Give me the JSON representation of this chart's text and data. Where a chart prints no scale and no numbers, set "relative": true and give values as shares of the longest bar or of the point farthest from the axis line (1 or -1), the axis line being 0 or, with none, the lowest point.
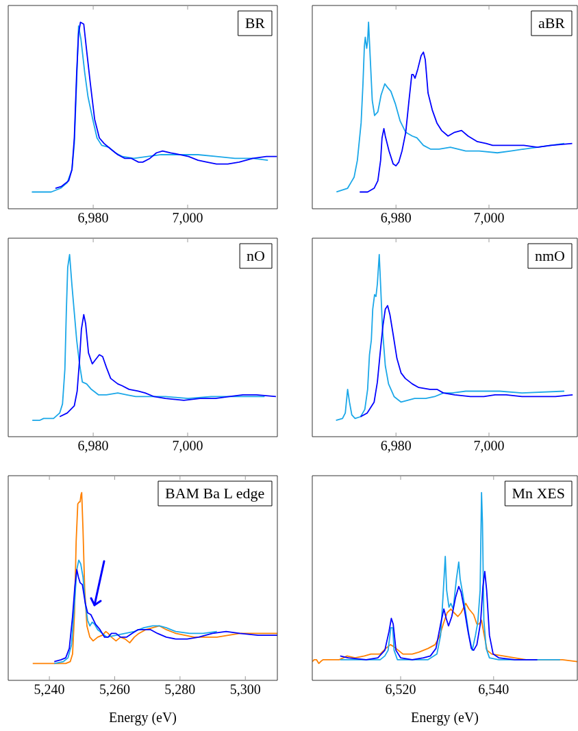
{
  "chart_data": [
    {
      "type": "line",
      "title": "BR",
      "relative": true,
      "xlim": [
        6962,
        7019
      ],
      "xticks": [
        {
          "value": 6980,
          "label": "6,980"
        },
        {
          "value": 7000,
          "label": "7,000"
        }
      ],
      "series": [
        {
          "color": "#0000ff",
          "x": [
            6972.0,
            6973.3,
            6974.8,
            6975.5,
            6976.0,
            6976.5,
            6976.9,
            6977.3,
            6978.0,
            6978.6,
            6979.4,
            6980.3,
            6981.3,
            6982.3,
            6983.7,
            6985.2,
            6986.7,
            6988.1,
            6989.6,
            6990.5,
            6992.0,
            6993.4,
            6994.7,
            6996.4,
            6998.3,
            7000.2,
            7002.2,
            7004.1,
            7006.1,
            7008.5,
            7010.9,
            7013.8,
            7016.7,
            7018.9
          ],
          "values": [
            0.11,
            0.12,
            0.15,
            0.21,
            0.38,
            0.73,
            0.94,
            1.0,
            0.99,
            0.85,
            0.67,
            0.48,
            0.38,
            0.35,
            0.32,
            0.29,
            0.27,
            0.27,
            0.25,
            0.25,
            0.27,
            0.3,
            0.31,
            0.3,
            0.29,
            0.28,
            0.26,
            0.25,
            0.24,
            0.24,
            0.25,
            0.27,
            0.28,
            0.28
          ]
        },
        {
          "color": "#1aa7e8",
          "x": [
            6967.0,
            6971.1,
            6973.1,
            6974.5,
            6975.5,
            6976.0,
            6976.5,
            6976.9,
            6977.4,
            6978.2,
            6978.9,
            6979.9,
            6980.8,
            6981.8,
            6983.3,
            6984.7,
            6986.2,
            6988.6,
            6991.5,
            6994.4,
            6998.3,
            7002.2,
            7006.1,
            7010.0,
            7013.8,
            7017.0
          ],
          "values": [
            0.09,
            0.09,
            0.11,
            0.14,
            0.21,
            0.35,
            0.69,
            0.98,
            0.91,
            0.73,
            0.6,
            0.48,
            0.38,
            0.34,
            0.33,
            0.3,
            0.28,
            0.27,
            0.28,
            0.29,
            0.29,
            0.29,
            0.28,
            0.27,
            0.27,
            0.26
          ]
        }
      ]
    },
    {
      "type": "line",
      "title": "aBR",
      "relative": true,
      "xlim": [
        6962,
        7019
      ],
      "xticks": [
        {
          "value": 6980,
          "label": "6,980"
        },
        {
          "value": 7000,
          "label": "7,000"
        }
      ],
      "series": [
        {
          "color": "#0000ff",
          "x": [
            6972.2,
            6973.9,
            6975.3,
            6976.1,
            6976.7,
            6977.0,
            6977.4,
            6977.7,
            6978.5,
            6979.4,
            6980.0,
            6980.6,
            6981.3,
            6982.1,
            6982.8,
            6983.4,
            6983.7,
            6984.1,
            6984.7,
            6985.4,
            6985.9,
            6986.3,
            6986.9,
            6987.8,
            6988.8,
            6989.8,
            6991.2,
            6992.6,
            6994.1,
            6995.5,
            6997.5,
            6999.4,
            7000.8,
            7004.7,
            7007.5,
            7010.4,
            7013.3,
            7017.9
          ],
          "values": [
            0.09,
            0.09,
            0.11,
            0.15,
            0.26,
            0.38,
            0.43,
            0.39,
            0.31,
            0.24,
            0.23,
            0.25,
            0.31,
            0.41,
            0.58,
            0.72,
            0.72,
            0.7,
            0.75,
            0.82,
            0.84,
            0.8,
            0.62,
            0.53,
            0.46,
            0.42,
            0.39,
            0.41,
            0.42,
            0.39,
            0.36,
            0.35,
            0.34,
            0.34,
            0.34,
            0.33,
            0.34,
            0.35
          ]
        },
        {
          "color": "#1aa7e8",
          "x": [
            6967.2,
            6969.6,
            6970.3,
            6971.0,
            6971.7,
            6972.5,
            6972.9,
            6973.2,
            6973.4,
            6973.7,
            6973.9,
            6974.1,
            6974.5,
            6974.9,
            6975.4,
            6976.1,
            6976.8,
            6977.6,
            6978.2,
            6978.9,
            6979.9,
            6980.9,
            6982.1,
            6983.5,
            6984.5,
            6985.9,
            6987.4,
            6989.3,
            6991.7,
            6995.0,
            6997.9,
            7001.8,
            7004.7,
            7007.5,
            7010.4,
            7013.3,
            7016.2
          ],
          "values": [
            0.09,
            0.11,
            0.14,
            0.17,
            0.26,
            0.46,
            0.67,
            0.87,
            0.92,
            0.86,
            0.9,
            1.0,
            0.79,
            0.58,
            0.5,
            0.52,
            0.61,
            0.67,
            0.65,
            0.63,
            0.56,
            0.47,
            0.41,
            0.39,
            0.38,
            0.34,
            0.32,
            0.32,
            0.33,
            0.31,
            0.31,
            0.3,
            0.31,
            0.32,
            0.33,
            0.34,
            0.35
          ]
        }
      ]
    },
    {
      "type": "line",
      "title": "nO",
      "relative": true,
      "xlim": [
        6962,
        7019
      ],
      "xticks": [
        {
          "value": 6980,
          "label": "6,980"
        },
        {
          "value": 7000,
          "label": "7,000"
        }
      ],
      "series": [
        {
          "color": "#0000ff",
          "x": [
            6972.9,
            6974.5,
            6976.0,
            6976.6,
            6977.1,
            6977.5,
            6978.0,
            6978.4,
            6979.0,
            6979.8,
            6980.4,
            6981.3,
            6982.0,
            6982.8,
            6983.7,
            6985.2,
            6986.1,
            6987.6,
            6989.5,
            6991.0,
            6992.9,
            6995.3,
            6999.2,
            7002.6,
            7005.9,
            7008.8,
            7011.7,
            7014.6,
            7018.7
          ],
          "values": [
            0.11,
            0.13,
            0.17,
            0.25,
            0.42,
            0.59,
            0.67,
            0.62,
            0.46,
            0.4,
            0.42,
            0.45,
            0.44,
            0.38,
            0.32,
            0.29,
            0.28,
            0.26,
            0.25,
            0.24,
            0.22,
            0.21,
            0.2,
            0.21,
            0.21,
            0.22,
            0.23,
            0.23,
            0.22
          ]
        },
        {
          "color": "#1aa7e8",
          "x": [
            6967.1,
            6968.7,
            6969.5,
            6970.2,
            6971.6,
            6972.9,
            6973.5,
            6974.0,
            6974.3,
            6974.6,
            6975.0,
            6975.5,
            6976.0,
            6976.5,
            6977.1,
            6977.7,
            6978.6,
            6979.6,
            6981.1,
            6982.8,
            6985.2,
            6987.1,
            6989.0,
            6991.4,
            6995.3,
            7000.1,
            7005.0,
            7009.8,
            7016.3
          ],
          "values": [
            0.09,
            0.09,
            0.1,
            0.1,
            0.1,
            0.13,
            0.18,
            0.37,
            0.68,
            0.93,
            1.0,
            0.83,
            0.68,
            0.53,
            0.4,
            0.3,
            0.29,
            0.26,
            0.23,
            0.23,
            0.24,
            0.23,
            0.22,
            0.22,
            0.22,
            0.21,
            0.22,
            0.22,
            0.22
          ]
        }
      ]
    },
    {
      "type": "line",
      "title": "nmO",
      "relative": true,
      "xlim": [
        6962,
        7019
      ],
      "xticks": [
        {
          "value": 6980,
          "label": "6,980"
        },
        {
          "value": 7000,
          "label": "7,000"
        }
      ],
      "series": [
        {
          "color": "#0000ff",
          "x": [
            6972.4,
            6973.8,
            6975.3,
            6976.0,
            6976.6,
            6977.2,
            6977.7,
            6978.2,
            6978.7,
            6979.4,
            6980.2,
            6981.1,
            6982.0,
            6983.5,
            6984.9,
            6987.3,
            6988.8,
            6990.2,
            6992.6,
            6996.0,
            6998.9,
            7001.3,
            7003.7,
            7007.1,
            7010.9,
            7014.3,
            7018.0
          ],
          "values": [
            0.11,
            0.13,
            0.19,
            0.3,
            0.46,
            0.61,
            0.7,
            0.72,
            0.67,
            0.56,
            0.43,
            0.35,
            0.32,
            0.29,
            0.27,
            0.26,
            0.26,
            0.24,
            0.23,
            0.22,
            0.22,
            0.23,
            0.23,
            0.22,
            0.22,
            0.22,
            0.23
          ]
        },
        {
          "color": "#1aa7e8",
          "x": [
            6967.1,
            6968.5,
            6969.1,
            6969.6,
            6970.0,
            6970.5,
            6971.2,
            6972.4,
            6973.3,
            6973.9,
            6974.3,
            6974.7,
            6975.0,
            6975.4,
            6975.7,
            6976.0,
            6976.4,
            6976.7,
            6977.1,
            6977.7,
            6978.4,
            6979.6,
            6981.1,
            6982.5,
            6984.0,
            6986.4,
            6988.3,
            6990.2,
            6992.1,
            6995.0,
            6997.9,
            7002.3,
            7007.1,
            7016.2
          ],
          "values": [
            0.09,
            0.1,
            0.13,
            0.26,
            0.19,
            0.12,
            0.1,
            0.11,
            0.15,
            0.26,
            0.45,
            0.53,
            0.7,
            0.78,
            0.77,
            0.84,
            1.0,
            0.83,
            0.59,
            0.39,
            0.29,
            0.22,
            0.19,
            0.2,
            0.21,
            0.21,
            0.22,
            0.24,
            0.24,
            0.25,
            0.25,
            0.25,
            0.24,
            0.25
          ]
        }
      ]
    },
    {
      "type": "line",
      "title": "BAM Ba L edge",
      "xlabel": "Energy (eV)",
      "relative": true,
      "xlim": [
        5227.4,
        5309.8
      ],
      "xticks": [
        {
          "value": 5240,
          "label": "5,240"
        },
        {
          "value": 5260,
          "label": "5,260"
        },
        {
          "value": 5280,
          "label": "5,280"
        },
        {
          "value": 5300,
          "label": "5,300"
        }
      ],
      "series": [
        {
          "color": "#0000ff",
          "x": [
            5241.5,
            5243.6,
            5245.0,
            5246.1,
            5247.1,
            5247.8,
            5248.4,
            5248.9,
            5249.4,
            5250.1,
            5251.0,
            5251.7,
            5252.7,
            5254.1,
            5255.5,
            5256.9,
            5258.0,
            5259.0,
            5260.4,
            5261.8,
            5263.6,
            5265.3,
            5267.1,
            5268.9,
            5271.0,
            5273.1,
            5275.8,
            5278.7,
            5282.2,
            5285.7,
            5289.9,
            5294.1,
            5298.3,
            5303.9,
            5309.8
          ],
          "values": [
            0.1,
            0.11,
            0.12,
            0.17,
            0.34,
            0.5,
            0.59,
            0.55,
            0.52,
            0.51,
            0.41,
            0.36,
            0.35,
            0.3,
            0.27,
            0.23,
            0.23,
            0.25,
            0.25,
            0.23,
            0.23,
            0.25,
            0.27,
            0.27,
            0.27,
            0.25,
            0.23,
            0.22,
            0.22,
            0.23,
            0.25,
            0.26,
            0.25,
            0.24,
            0.24
          ]
        },
        {
          "color": "#1aa7e8",
          "x": [
            5241.5,
            5244.3,
            5245.7,
            5246.8,
            5247.7,
            5248.4,
            5249.0,
            5249.6,
            5250.3,
            5251.0,
            5251.7,
            5252.4,
            5253.1,
            5253.8,
            5254.8,
            5256.2,
            5257.6,
            5260.4,
            5263.2,
            5266.0,
            5268.9,
            5271.6,
            5273.7,
            5275.8,
            5278.7,
            5282.9,
            5287.1,
            5291.3
          ],
          "values": [
            0.09,
            0.1,
            0.12,
            0.19,
            0.41,
            0.59,
            0.64,
            0.62,
            0.55,
            0.41,
            0.32,
            0.29,
            0.31,
            0.3,
            0.27,
            0.25,
            0.23,
            0.24,
            0.25,
            0.26,
            0.28,
            0.29,
            0.29,
            0.28,
            0.26,
            0.25,
            0.25,
            0.26
          ]
        },
        {
          "color": "#ff8000",
          "x": [
            5234.9,
            5240.8,
            5245.0,
            5246.4,
            5247.1,
            5247.7,
            5248.2,
            5248.7,
            5249.1,
            5249.4,
            5249.7,
            5249.9,
            5250.3,
            5250.8,
            5251.5,
            5252.4,
            5253.4,
            5254.8,
            5256.2,
            5257.3,
            5258.0,
            5259.0,
            5260.4,
            5261.8,
            5263.2,
            5264.6,
            5266.0,
            5267.4,
            5269.5,
            5271.6,
            5273.7,
            5275.8,
            5278.7,
            5281.5,
            5284.3,
            5287.8,
            5291.3,
            5294.8,
            5298.3,
            5303.9,
            5309.8
          ],
          "values": [
            0.09,
            0.09,
            0.09,
            0.1,
            0.14,
            0.36,
            0.74,
            0.94,
            0.95,
            0.95,
            0.99,
            1.0,
            0.8,
            0.49,
            0.29,
            0.23,
            0.21,
            0.23,
            0.24,
            0.26,
            0.25,
            0.23,
            0.21,
            0.23,
            0.22,
            0.2,
            0.23,
            0.25,
            0.27,
            0.28,
            0.29,
            0.27,
            0.25,
            0.24,
            0.23,
            0.23,
            0.23,
            0.24,
            0.25,
            0.25,
            0.25
          ]
        }
      ]
    },
    {
      "type": "line",
      "title": "Mn XES",
      "xlabel": "Energy (eV)",
      "relative": true,
      "xlim": [
        6501,
        6558
      ],
      "xticks": [
        {
          "value": 6520,
          "label": "6,520"
        },
        {
          "value": 6540,
          "label": "6,540"
        }
      ],
      "series": [
        {
          "color": "#0000ff",
          "x": [
            6507.0,
            6508.7,
            6512.6,
            6515.1,
            6516.6,
            6517.5,
            6518.0,
            6518.4,
            6519.0,
            6520.0,
            6522.5,
            6524.9,
            6526.4,
            6527.6,
            6528.6,
            6529.3,
            6529.8,
            6530.3,
            6531.0,
            6531.8,
            6532.5,
            6533.0,
            6533.7,
            6534.5,
            6535.2,
            6535.7,
            6536.4,
            6537.2,
            6537.7,
            6538.1,
            6538.5,
            6539.1,
            6539.9,
            6541.1,
            6544.5,
            6549.4
          ],
          "values": [
            0.13,
            0.12,
            0.11,
            0.12,
            0.16,
            0.26,
            0.33,
            0.3,
            0.16,
            0.12,
            0.11,
            0.12,
            0.13,
            0.17,
            0.3,
            0.38,
            0.33,
            0.29,
            0.34,
            0.44,
            0.5,
            0.47,
            0.38,
            0.26,
            0.17,
            0.16,
            0.19,
            0.31,
            0.5,
            0.58,
            0.48,
            0.24,
            0.14,
            0.12,
            0.11,
            0.11
          ]
        },
        {
          "color": "#1aa7e8",
          "x": [
            6507.0,
            6512.6,
            6515.6,
            6516.6,
            6517.3,
            6517.9,
            6518.3,
            6518.6,
            6519.3,
            6522.5,
            6525.9,
            6527.8,
            6528.6,
            6529.1,
            6529.6,
            6529.9,
            6530.4,
            6530.8,
            6531.3,
            6532.0,
            6532.5,
            6532.8,
            6533.3,
            6534.0,
            6534.7,
            6535.4,
            6536.1,
            6536.6,
            6537.1,
            6537.4,
            6537.6,
            6537.9,
            6538.4,
            6539.1,
            6541.1,
            6547.0,
            6554.3
          ],
          "values": [
            0.11,
            0.11,
            0.11,
            0.13,
            0.16,
            0.28,
            0.28,
            0.16,
            0.11,
            0.11,
            0.11,
            0.14,
            0.24,
            0.44,
            0.66,
            0.48,
            0.39,
            0.41,
            0.38,
            0.54,
            0.63,
            0.54,
            0.47,
            0.36,
            0.24,
            0.16,
            0.24,
            0.31,
            0.48,
            1.0,
            0.84,
            0.32,
            0.17,
            0.12,
            0.11,
            0.11,
            0.11
          ]
        },
        {
          "color": "#ff8000",
          "x": [
            6501.0,
            6501.4,
            6501.9,
            6502.4,
            6502.8,
            6503.3,
            6504.3,
            6505.3,
            6506.8,
            6508.5,
            6510.2,
            6512.2,
            6513.6,
            6515.6,
            6516.8,
            6517.8,
            6518.5,
            6519.5,
            6520.5,
            6522.5,
            6523.9,
            6525.9,
            6527.4,
            6528.3,
            6529.3,
            6530.0,
            6530.8,
            6531.5,
            6532.3,
            6533.0,
            6534.0,
            6534.7,
            6535.7,
            6536.4,
            6536.9,
            6537.4,
            6537.9,
            6538.6,
            6539.6,
            6542.1,
            6544.5,
            6547.0,
            6549.4,
            6551.9,
            6554.8,
            6558.0
          ],
          "values": [
            0.1,
            0.11,
            0.11,
            0.09,
            0.1,
            0.11,
            0.11,
            0.11,
            0.11,
            0.13,
            0.12,
            0.13,
            0.14,
            0.14,
            0.17,
            0.19,
            0.18,
            0.16,
            0.14,
            0.14,
            0.15,
            0.17,
            0.19,
            0.23,
            0.31,
            0.36,
            0.38,
            0.36,
            0.34,
            0.36,
            0.41,
            0.38,
            0.35,
            0.3,
            0.3,
            0.32,
            0.25,
            0.16,
            0.14,
            0.13,
            0.12,
            0.11,
            0.11,
            0.11,
            0.11,
            0.1
          ]
        }
      ]
    }
  ]
}
